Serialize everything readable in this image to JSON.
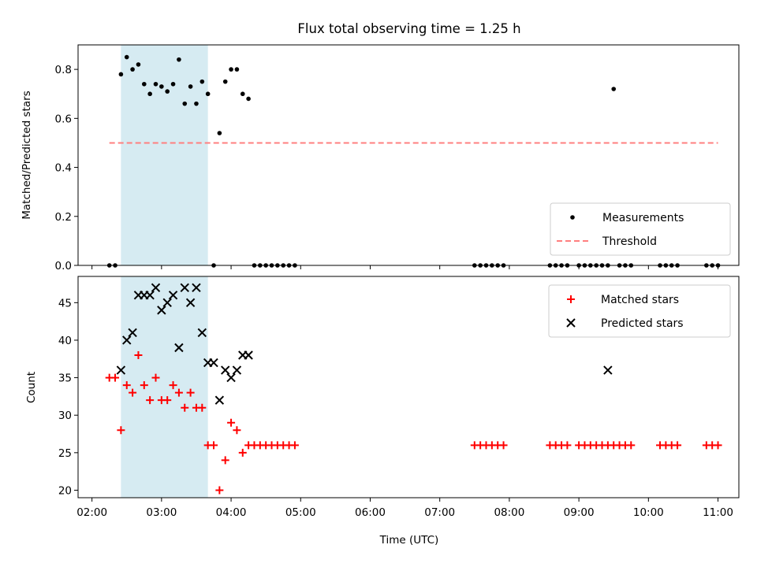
{
  "chart_data": [
    {
      "type": "scatter",
      "title": "Flux total observing time = 1.25 h",
      "xlabel": "",
      "ylabel": "Matched/Predicted stars",
      "xlim": [
        "02:00",
        "11:00"
      ],
      "ylim": [
        0,
        0.9
      ],
      "yticks": [
        0.0,
        0.2,
        0.4,
        0.6,
        0.8
      ],
      "ytick_labels": [
        "0.0",
        "0.2",
        "0.4",
        "0.6",
        "0.8"
      ],
      "shaded_interval": [
        "02:25",
        "03:40"
      ],
      "shade_color": "#add8e6",
      "series": [
        {
          "name": "Measurements",
          "marker": "dot",
          "color": "#000000",
          "x": [
            "02:15",
            "02:20",
            "02:25",
            "02:30",
            "02:35",
            "02:40",
            "02:45",
            "02:50",
            "02:55",
            "03:00",
            "03:05",
            "03:10",
            "03:15",
            "03:20",
            "03:25",
            "03:30",
            "03:35",
            "03:40",
            "03:45",
            "03:50",
            "03:55",
            "04:00",
            "04:05",
            "04:10",
            "04:15",
            "04:20",
            "04:25",
            "04:30",
            "04:35",
            "04:40",
            "04:45",
            "04:50",
            "04:55",
            "07:30",
            "07:35",
            "07:40",
            "07:45",
            "07:50",
            "07:55",
            "08:35",
            "08:40",
            "08:45",
            "08:50",
            "09:00",
            "09:05",
            "09:10",
            "09:15",
            "09:20",
            "09:25",
            "09:30",
            "09:35",
            "09:40",
            "09:45",
            "10:10",
            "10:15",
            "10:20",
            "10:25",
            "10:50",
            "10:55",
            "11:00"
          ],
          "y": [
            0,
            0,
            0.78,
            0.85,
            0.8,
            0.82,
            0.74,
            0.7,
            0.74,
            0.73,
            0.71,
            0.74,
            0.84,
            0.66,
            0.73,
            0.66,
            0.75,
            0.7,
            0,
            0.54,
            0.75,
            0.8,
            0.8,
            0.7,
            0.68,
            0,
            0,
            0,
            0,
            0,
            0,
            0,
            0,
            0,
            0,
            0,
            0,
            0,
            0,
            0,
            0,
            0,
            0,
            0,
            0,
            0,
            0,
            0,
            0,
            0.72,
            0,
            0,
            0,
            0,
            0,
            0,
            0,
            0,
            0,
            0
          ]
        },
        {
          "name": "Threshold",
          "style": "dashed",
          "color": "#ff7f7f",
          "x": [
            "02:15",
            "11:00"
          ],
          "y": [
            0.5,
            0.5
          ]
        }
      ],
      "legend": "lower right"
    },
    {
      "type": "scatter",
      "title": "",
      "xlabel": "Time (UTC)",
      "ylabel": "Count",
      "xlim": [
        "02:00",
        "11:00"
      ],
      "xticks": [
        "02:00",
        "03:00",
        "04:00",
        "05:00",
        "06:00",
        "07:00",
        "08:00",
        "09:00",
        "10:00",
        "11:00"
      ],
      "ylim": [
        19,
        48.5
      ],
      "yticks": [
        20,
        25,
        30,
        35,
        40,
        45
      ],
      "shaded_interval": [
        "02:25",
        "03:40"
      ],
      "shade_color": "#add8e6",
      "series": [
        {
          "name": "Matched stars",
          "marker": "plus",
          "color": "#ff0000",
          "x": [
            "02:15",
            "02:20",
            "02:25",
            "02:30",
            "02:35",
            "02:40",
            "02:45",
            "02:50",
            "02:55",
            "03:00",
            "03:05",
            "03:10",
            "03:15",
            "03:20",
            "03:25",
            "03:30",
            "03:35",
            "03:40",
            "03:45",
            "03:50",
            "03:55",
            "04:00",
            "04:05",
            "04:10",
            "04:15",
            "04:20",
            "04:25",
            "04:30",
            "04:35",
            "04:40",
            "04:45",
            "04:50",
            "04:55",
            "07:30",
            "07:35",
            "07:40",
            "07:45",
            "07:50",
            "07:55",
            "08:35",
            "08:40",
            "08:45",
            "08:50",
            "09:00",
            "09:05",
            "09:10",
            "09:15",
            "09:20",
            "09:25",
            "09:30",
            "09:35",
            "09:40",
            "09:45",
            "10:10",
            "10:15",
            "10:20",
            "10:25",
            "10:50",
            "10:55",
            "11:00"
          ],
          "y": [
            35,
            35,
            28,
            34,
            33,
            38,
            34,
            32,
            35,
            32,
            32,
            34,
            33,
            31,
            33,
            31,
            31,
            26,
            26,
            20,
            24,
            29,
            28,
            25,
            26,
            26,
            26,
            26,
            26,
            26,
            26,
            26,
            26,
            26,
            26,
            26,
            26,
            26,
            26,
            26,
            26,
            26,
            26,
            26,
            26,
            26,
            26,
            26,
            26,
            26,
            26,
            26,
            26,
            26,
            26,
            26,
            26,
            26,
            26,
            26
          ]
        },
        {
          "name": "Predicted stars",
          "marker": "x",
          "color": "#000000",
          "x": [
            "02:25",
            "02:30",
            "02:35",
            "02:40",
            "02:45",
            "02:50",
            "02:55",
            "03:00",
            "03:05",
            "03:10",
            "03:15",
            "03:20",
            "03:25",
            "03:30",
            "03:35",
            "03:40",
            "03:45",
            "03:50",
            "03:55",
            "04:00",
            "04:05",
            "04:10",
            "04:15",
            "09:25"
          ],
          "y": [
            36,
            40,
            41,
            46,
            46,
            46,
            47,
            44,
            45,
            46,
            39,
            47,
            45,
            47,
            41,
            37,
            37,
            32,
            36,
            35,
            36,
            38,
            38,
            36
          ]
        }
      ],
      "legend": "upper right"
    }
  ]
}
